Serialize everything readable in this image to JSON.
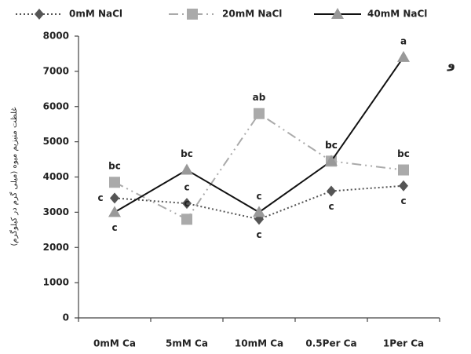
{
  "chart_data": {
    "type": "line",
    "y_label": "غلظت منیزیم میوه (میلی گرم در کیلوگرم)",
    "note": "و",
    "categories": [
      "0mM Ca",
      "5mM Ca",
      "10mM Ca",
      "0.5Per Ca",
      "1Per Ca"
    ],
    "series": [
      {
        "name": "0mM NaCl",
        "color": "#555555",
        "marker_color": "#555555",
        "marker": "diamond",
        "line_style": "dotted",
        "values": [
          3400,
          3250,
          2800,
          3600,
          3750
        ],
        "letters": [
          "c",
          "c",
          "c",
          "c",
          "c"
        ]
      },
      {
        "name": "20mM NaCl",
        "color": "#aaaaaa",
        "marker_color": "#aaaaaa",
        "marker": "square",
        "line_style": "dashdot",
        "values": [
          3850,
          2800,
          5800,
          4450,
          4200
        ],
        "letters": [
          "bc",
          "c",
          "ab",
          "bc",
          "bc"
        ]
      },
      {
        "name": "40mM NaCl",
        "color": "#111111",
        "marker_color": "#999999",
        "marker": "triangle",
        "line_style": "solid",
        "values": [
          3000,
          4200,
          3000,
          4450,
          7400
        ],
        "letters": [
          "c",
          "bc",
          "c",
          "bc",
          "a"
        ]
      }
    ],
    "ylim": [
      0,
      8000
    ],
    "yticks": [
      0,
      1000,
      2000,
      3000,
      4000,
      5000,
      6000,
      7000,
      8000
    ],
    "grid": false
  }
}
